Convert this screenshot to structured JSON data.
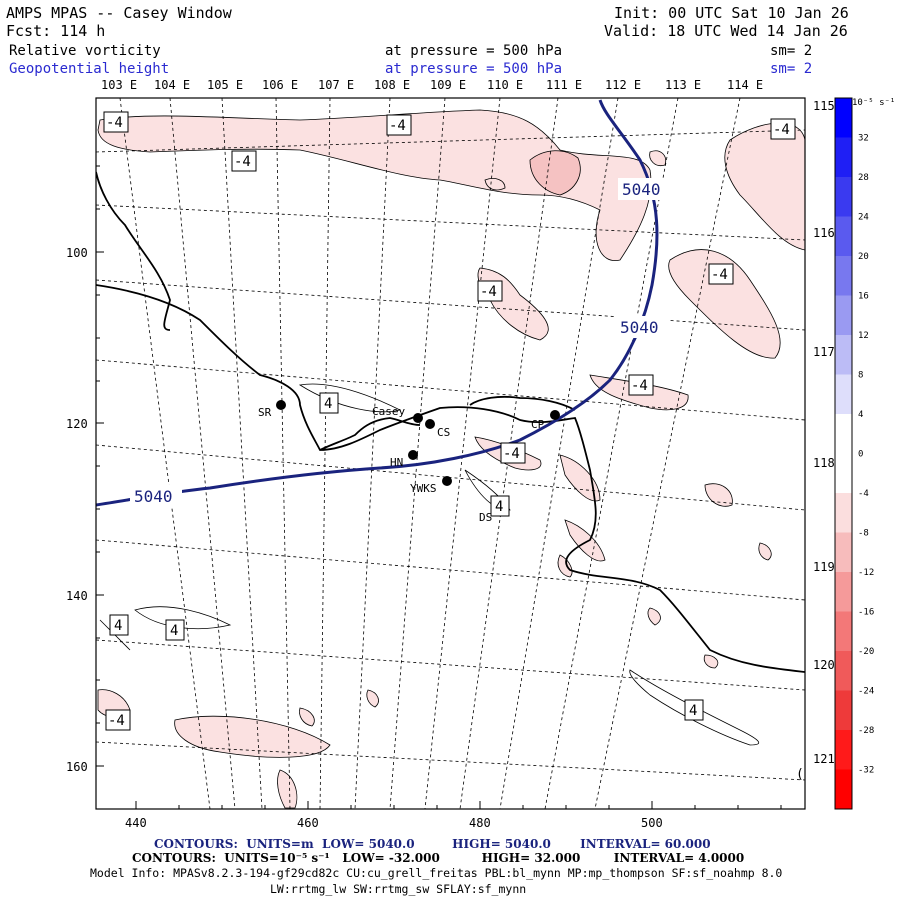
{
  "header": {
    "title": "AMPS MPAS -- Casey Window",
    "init": "Init: 00 UTC Sat 10 Jan 26",
    "forecast": "Fcst:  114 h",
    "valid": "Valid: 18 UTC Wed 14 Jan 26",
    "field1": "Relative vorticity",
    "field1_level": "at pressure =  500 hPa",
    "field1_sm": "sm= 2",
    "field2": "Geopotential height",
    "field2_level": "at pressure =  500 hPa",
    "field2_sm": "sm= 2"
  },
  "colors": {
    "height_contour": "#1a237e",
    "vort_pos_light": "#fbe1e1",
    "vort_pos_mid": "#f5c2c2",
    "coast": "#000000"
  },
  "map": {
    "top_lon_labels": [
      "103 E",
      "104 E",
      "105 E",
      "106 E",
      "107 E",
      "108 E",
      "109 E",
      "110 E",
      "111 E",
      "112 E",
      "113 E",
      "114 E"
    ],
    "right_lon_labels": [
      "115 E",
      "116 E",
      "117 E",
      "118 E",
      "119 E",
      "120 E",
      "121 E"
    ],
    "bottom_x_ticks": [
      "440",
      "460",
      "480",
      "500"
    ],
    "left_y_ticks": [
      "100",
      "120",
      "140",
      "160"
    ],
    "height_labels": [
      "5040",
      "5040",
      "5040"
    ],
    "vort_labels": [
      "-4",
      "-4",
      "-4",
      "-4",
      "-4",
      "-4",
      "-4",
      "-4",
      "4",
      "4",
      "4",
      "4",
      "4",
      "-4"
    ],
    "stations": [
      {
        "code": "SR"
      },
      {
        "code": "Casey"
      },
      {
        "code": "CS"
      },
      {
        "code": "CP"
      },
      {
        "code": "HN"
      },
      {
        "code": "YWKS"
      },
      {
        "code": "DS"
      }
    ],
    "corner_mark": "("
  },
  "colorbar": {
    "unit": "10⁻⁵ s⁻¹",
    "labels": [
      "32",
      "28",
      "24",
      "20",
      "16",
      "12",
      "8",
      "4",
      "0",
      "-4",
      "-8",
      "-12",
      "-16",
      "-20",
      "-24",
      "-28",
      "-32"
    ],
    "colors": [
      "#0000ff",
      "#1f1ff5",
      "#3a3af0",
      "#5a5aef",
      "#7878ef",
      "#9a9af2",
      "#bcbcf6",
      "#dedefb",
      "#ffffff",
      "#ffffff",
      "#fbdede",
      "#f7bcbc",
      "#f59a9a",
      "#f37878",
      "#f05a5a",
      "#ee3a3a",
      "#ff1a1a",
      "#ff0000"
    ]
  },
  "footer": {
    "line1_label": "CONTOURS:",
    "line1_units": "UNITS=m",
    "line1_low": "LOW=  5040.0",
    "line1_high": "HIGH=  5040.0",
    "line1_interval": "INTERVAL=  60.000",
    "line2_label": "CONTOURS:",
    "line2_units": "UNITS=10⁻⁵ s⁻¹",
    "line2_low": "LOW= -32.000",
    "line2_high": "HIGH= 32.000",
    "line2_interval": "INTERVAL=  4.0000",
    "model_info": "Model Info: MPASv8.2.3-194-gf29cd82c CU:cu_grell_freitas PBL:bl_mynn MP:mp_thompson SF:sf_noahmp 8.0",
    "model_info2": "LW:rrtmg_lw SW:rrtmg_sw SFLAY:sf_mynn"
  }
}
